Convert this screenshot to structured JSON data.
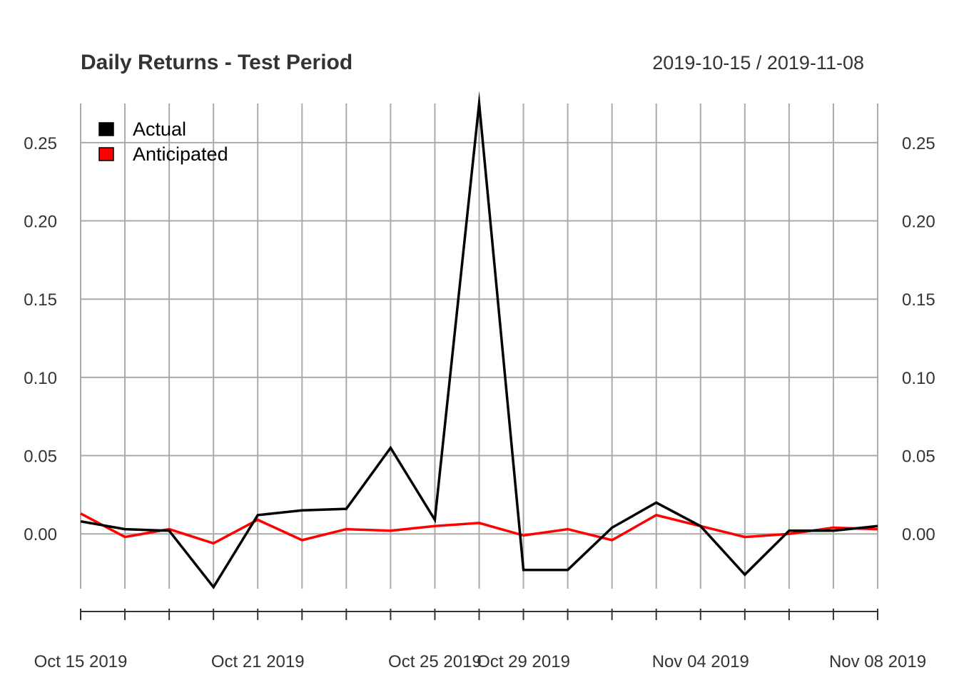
{
  "chart_data": {
    "type": "line",
    "title": "Daily Returns - Test Period",
    "date_range_label": "2019-10-15 / 2019-11-08",
    "x": [
      "2019-10-15",
      "2019-10-16",
      "2019-10-17",
      "2019-10-18",
      "2019-10-21",
      "2019-10-22",
      "2019-10-23",
      "2019-10-24",
      "2019-10-25",
      "2019-10-28",
      "2019-10-29",
      "2019-10-30",
      "2019-10-31",
      "2019-11-01",
      "2019-11-04",
      "2019-11-05",
      "2019-11-06",
      "2019-11-07",
      "2019-11-08"
    ],
    "series": [
      {
        "name": "Actual",
        "color": "#000000",
        "values": [
          0.008,
          0.003,
          0.002,
          -0.034,
          0.012,
          0.015,
          0.016,
          0.055,
          0.009,
          0.275,
          -0.023,
          -0.023,
          0.004,
          0.02,
          0.005,
          -0.026,
          0.002,
          0.002,
          0.005
        ]
      },
      {
        "name": "Anticipated",
        "color": "#ff0000",
        "values": [
          0.013,
          -0.002,
          0.003,
          -0.006,
          0.009,
          -0.004,
          0.003,
          0.002,
          0.005,
          0.007,
          -0.001,
          0.003,
          -0.004,
          0.012,
          0.005,
          -0.002,
          0.0,
          0.004,
          0.003
        ]
      }
    ],
    "ylim": [
      -0.035,
      0.275
    ],
    "y_ticks": [
      0.0,
      0.05,
      0.1,
      0.15,
      0.2,
      0.25
    ],
    "y_tick_labels": [
      "0.00",
      "0.05",
      "0.10",
      "0.15",
      "0.20",
      "0.25"
    ],
    "x_tick_labels": [
      {
        "date": "2019-10-15",
        "label": "Oct 15 2019"
      },
      {
        "date": "2019-10-21",
        "label": "Oct 21 2019"
      },
      {
        "date": "2019-10-25",
        "label": "Oct 25 2019"
      },
      {
        "date": "2019-10-29",
        "label": "Oct 29 2019"
      },
      {
        "date": "2019-11-04",
        "label": "Nov 04 2019"
      },
      {
        "date": "2019-11-08",
        "label": "Nov 08 2019"
      }
    ],
    "grid": true,
    "legend_position": "top-left",
    "grid_color": "#aaaaaa"
  }
}
